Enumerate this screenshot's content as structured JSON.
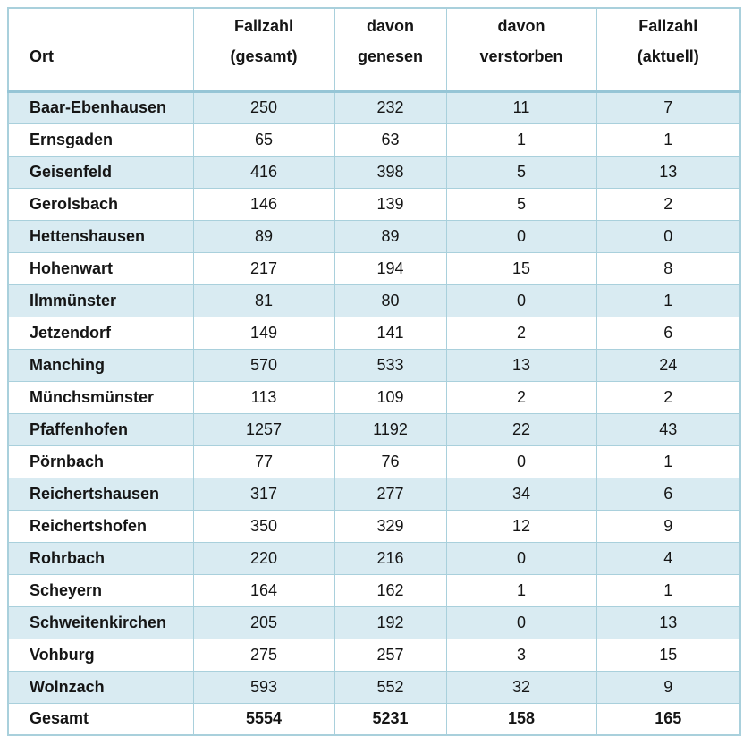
{
  "chart_data": {
    "type": "table",
    "columns": [
      {
        "id": "ort",
        "label": "Ort"
      },
      {
        "id": "fallzahl_gesamt",
        "label": "Fallzahl\n(gesamt)"
      },
      {
        "id": "davon_genesen",
        "label": "davon\ngenesen"
      },
      {
        "id": "davon_verstorben",
        "label": "davon\nverstorben"
      },
      {
        "id": "fallzahl_aktuell",
        "label": "Fallzahl\n(aktuell)"
      }
    ],
    "rows": [
      {
        "ort": "Baar-Ebenhausen",
        "fallzahl_gesamt": 250,
        "davon_genesen": 232,
        "davon_verstorben": 11,
        "fallzahl_aktuell": 7
      },
      {
        "ort": "Ernsgaden",
        "fallzahl_gesamt": 65,
        "davon_genesen": 63,
        "davon_verstorben": 1,
        "fallzahl_aktuell": 1
      },
      {
        "ort": "Geisenfeld",
        "fallzahl_gesamt": 416,
        "davon_genesen": 398,
        "davon_verstorben": 5,
        "fallzahl_aktuell": 13
      },
      {
        "ort": "Gerolsbach",
        "fallzahl_gesamt": 146,
        "davon_genesen": 139,
        "davon_verstorben": 5,
        "fallzahl_aktuell": 2
      },
      {
        "ort": "Hettenshausen",
        "fallzahl_gesamt": 89,
        "davon_genesen": 89,
        "davon_verstorben": 0,
        "fallzahl_aktuell": 0
      },
      {
        "ort": "Hohenwart",
        "fallzahl_gesamt": 217,
        "davon_genesen": 194,
        "davon_verstorben": 15,
        "fallzahl_aktuell": 8
      },
      {
        "ort": "Ilmmünster",
        "fallzahl_gesamt": 81,
        "davon_genesen": 80,
        "davon_verstorben": 0,
        "fallzahl_aktuell": 1
      },
      {
        "ort": "Jetzendorf",
        "fallzahl_gesamt": 149,
        "davon_genesen": 141,
        "davon_verstorben": 2,
        "fallzahl_aktuell": 6
      },
      {
        "ort": "Manching",
        "fallzahl_gesamt": 570,
        "davon_genesen": 533,
        "davon_verstorben": 13,
        "fallzahl_aktuell": 24
      },
      {
        "ort": "Münchsmünster",
        "fallzahl_gesamt": 113,
        "davon_genesen": 109,
        "davon_verstorben": 2,
        "fallzahl_aktuell": 2
      },
      {
        "ort": "Pfaffenhofen",
        "fallzahl_gesamt": 1257,
        "davon_genesen": 1192,
        "davon_verstorben": 22,
        "fallzahl_aktuell": 43
      },
      {
        "ort": "Pörnbach",
        "fallzahl_gesamt": 77,
        "davon_genesen": 76,
        "davon_verstorben": 0,
        "fallzahl_aktuell": 1
      },
      {
        "ort": "Reichertshausen",
        "fallzahl_gesamt": 317,
        "davon_genesen": 277,
        "davon_verstorben": 34,
        "fallzahl_aktuell": 6
      },
      {
        "ort": "Reichertshofen",
        "fallzahl_gesamt": 350,
        "davon_genesen": 329,
        "davon_verstorben": 12,
        "fallzahl_aktuell": 9
      },
      {
        "ort": "Rohrbach",
        "fallzahl_gesamt": 220,
        "davon_genesen": 216,
        "davon_verstorben": 0,
        "fallzahl_aktuell": 4
      },
      {
        "ort": "Scheyern",
        "fallzahl_gesamt": 164,
        "davon_genesen": 162,
        "davon_verstorben": 1,
        "fallzahl_aktuell": 1
      },
      {
        "ort": "Schweitenkirchen",
        "fallzahl_gesamt": 205,
        "davon_genesen": 192,
        "davon_verstorben": 0,
        "fallzahl_aktuell": 13
      },
      {
        "ort": "Vohburg",
        "fallzahl_gesamt": 275,
        "davon_genesen": 257,
        "davon_verstorben": 3,
        "fallzahl_aktuell": 15
      },
      {
        "ort": "Wolnzach",
        "fallzahl_gesamt": 593,
        "davon_genesen": 552,
        "davon_verstorben": 32,
        "fallzahl_aktuell": 9
      }
    ],
    "total_row": {
      "ort": "Gesamt",
      "fallzahl_gesamt": 5554,
      "davon_genesen": 5231,
      "davon_verstorben": 158,
      "fallzahl_aktuell": 165
    }
  },
  "colors": {
    "stripe": "#d9ebf2",
    "border": "#a9d0dc",
    "headersep": "#96c5d6",
    "text": "#151515"
  }
}
